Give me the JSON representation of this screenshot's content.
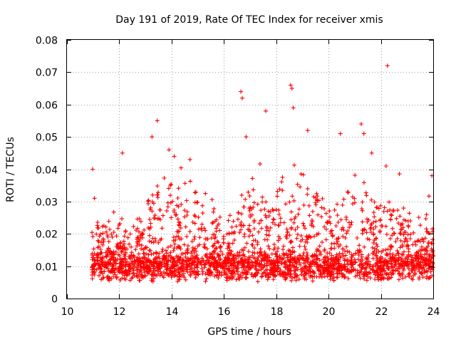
{
  "chart_data": {
    "type": "scatter",
    "title": "Day 191 of 2019, Rate Of TEC Index for receiver xmis",
    "xlabel": "GPS time / hours",
    "ylabel": "ROTI / TECUs",
    "xlim": [
      10,
      24
    ],
    "ylim": [
      0,
      0.08
    ],
    "x_ticks": [
      10,
      12,
      14,
      16,
      18,
      20,
      22,
      24
    ],
    "x_tick_labels": [
      "10",
      "12",
      "14",
      "16",
      "18",
      "20",
      "22",
      "24"
    ],
    "y_ticks": [
      0,
      0.01,
      0.02,
      0.03,
      0.04,
      0.05,
      0.06,
      0.07,
      0.08
    ],
    "y_tick_labels": [
      "0",
      "0.01",
      "0.02",
      "0.03",
      "0.04",
      "0.05",
      "0.06",
      "0.07",
      "0.08"
    ],
    "grid": true,
    "marker": "+",
    "color": "#ff0000",
    "series": [
      {
        "name": "ROTI",
        "data_range_hours": [
          10.95,
          24.0
        ],
        "baseline": 0.012,
        "notable_points": [
          {
            "x": 10.98,
            "y": 0.04
          },
          {
            "x": 11.05,
            "y": 0.031
          },
          {
            "x": 12.12,
            "y": 0.045
          },
          {
            "x": 13.25,
            "y": 0.05
          },
          {
            "x": 13.45,
            "y": 0.055
          },
          {
            "x": 13.9,
            "y": 0.046
          },
          {
            "x": 14.1,
            "y": 0.044
          },
          {
            "x": 14.7,
            "y": 0.043
          },
          {
            "x": 16.65,
            "y": 0.064
          },
          {
            "x": 16.7,
            "y": 0.062
          },
          {
            "x": 16.85,
            "y": 0.05
          },
          {
            "x": 17.6,
            "y": 0.058
          },
          {
            "x": 18.55,
            "y": 0.066
          },
          {
            "x": 18.6,
            "y": 0.065
          },
          {
            "x": 18.65,
            "y": 0.059
          },
          {
            "x": 19.2,
            "y": 0.052
          },
          {
            "x": 20.45,
            "y": 0.051
          },
          {
            "x": 21.25,
            "y": 0.054
          },
          {
            "x": 21.35,
            "y": 0.051
          },
          {
            "x": 21.65,
            "y": 0.045
          },
          {
            "x": 22.25,
            "y": 0.072
          },
          {
            "x": 22.2,
            "y": 0.041
          },
          {
            "x": 23.95,
            "y": 0.038
          }
        ]
      }
    ]
  }
}
